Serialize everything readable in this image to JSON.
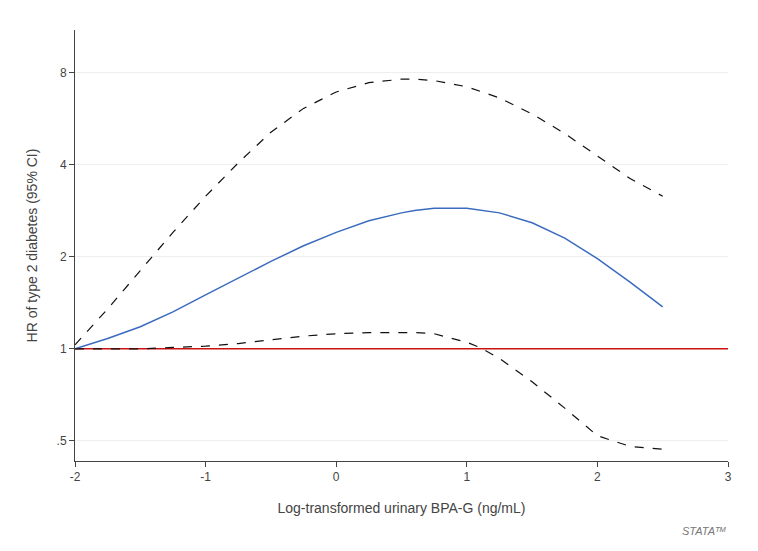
{
  "chart_data": {
    "type": "line",
    "xlabel": "Log-transformed urinary BPA-G (ng/mL)",
    "ylabel": "HR of type 2 diabetes (95% CI)",
    "xlim": [
      -2,
      3
    ],
    "xticks": [
      -2,
      -1,
      0,
      1,
      2,
      3
    ],
    "ylim": [
      0.43,
      11
    ],
    "yticks": [
      {
        "value": 0.5,
        "label": ".5"
      },
      1,
      2,
      4,
      8
    ],
    "log": "y",
    "grid": "y",
    "ref_line": {
      "y": 1.0,
      "color": "#cc1111"
    },
    "series": [
      {
        "color": "#3a6bbf",
        "line_style": "solid",
        "x": [
          -2.0,
          -1.75,
          -1.5,
          -1.25,
          -1.0,
          -0.75,
          -0.5,
          -0.25,
          0.0,
          0.25,
          0.5,
          0.6,
          0.75,
          1.0,
          1.25,
          1.5,
          1.75,
          2.0,
          2.25,
          2.5
        ],
        "values": [
          1.0,
          1.08,
          1.18,
          1.32,
          1.5,
          1.7,
          1.93,
          2.17,
          2.4,
          2.62,
          2.78,
          2.83,
          2.88,
          2.88,
          2.78,
          2.58,
          2.3,
          1.97,
          1.65,
          1.37
        ]
      },
      {
        "color": "#111111",
        "line_style": "dashed",
        "x": [
          -2.0,
          -1.75,
          -1.5,
          -1.25,
          -1.0,
          -0.75,
          -0.5,
          -0.25,
          0.0,
          0.25,
          0.5,
          0.6,
          0.75,
          1.0,
          1.25,
          1.5,
          1.75,
          2.0,
          2.25,
          2.5
        ],
        "values": [
          1.03,
          1.35,
          1.8,
          2.4,
          3.15,
          4.05,
          5.1,
          6.1,
          6.9,
          7.4,
          7.6,
          7.6,
          7.52,
          7.18,
          6.6,
          5.85,
          5.05,
          4.25,
          3.6,
          3.15
        ]
      },
      {
        "color": "#111111",
        "line_style": "dashed",
        "x": [
          -2.0,
          -1.75,
          -1.5,
          -1.25,
          -1.0,
          -0.75,
          -0.5,
          -0.25,
          0.0,
          0.25,
          0.5,
          0.6,
          0.75,
          1.0,
          1.1,
          1.25,
          1.5,
          1.75,
          2.0,
          2.25,
          2.5
        ],
        "values": [
          1.0,
          1.0,
          1.0,
          1.01,
          1.02,
          1.04,
          1.07,
          1.1,
          1.12,
          1.13,
          1.13,
          1.13,
          1.12,
          1.05,
          1.01,
          0.93,
          0.78,
          0.64,
          0.52,
          0.48,
          0.47
        ]
      }
    ],
    "annotations": [
      "STATAᵀᴹ"
    ]
  }
}
